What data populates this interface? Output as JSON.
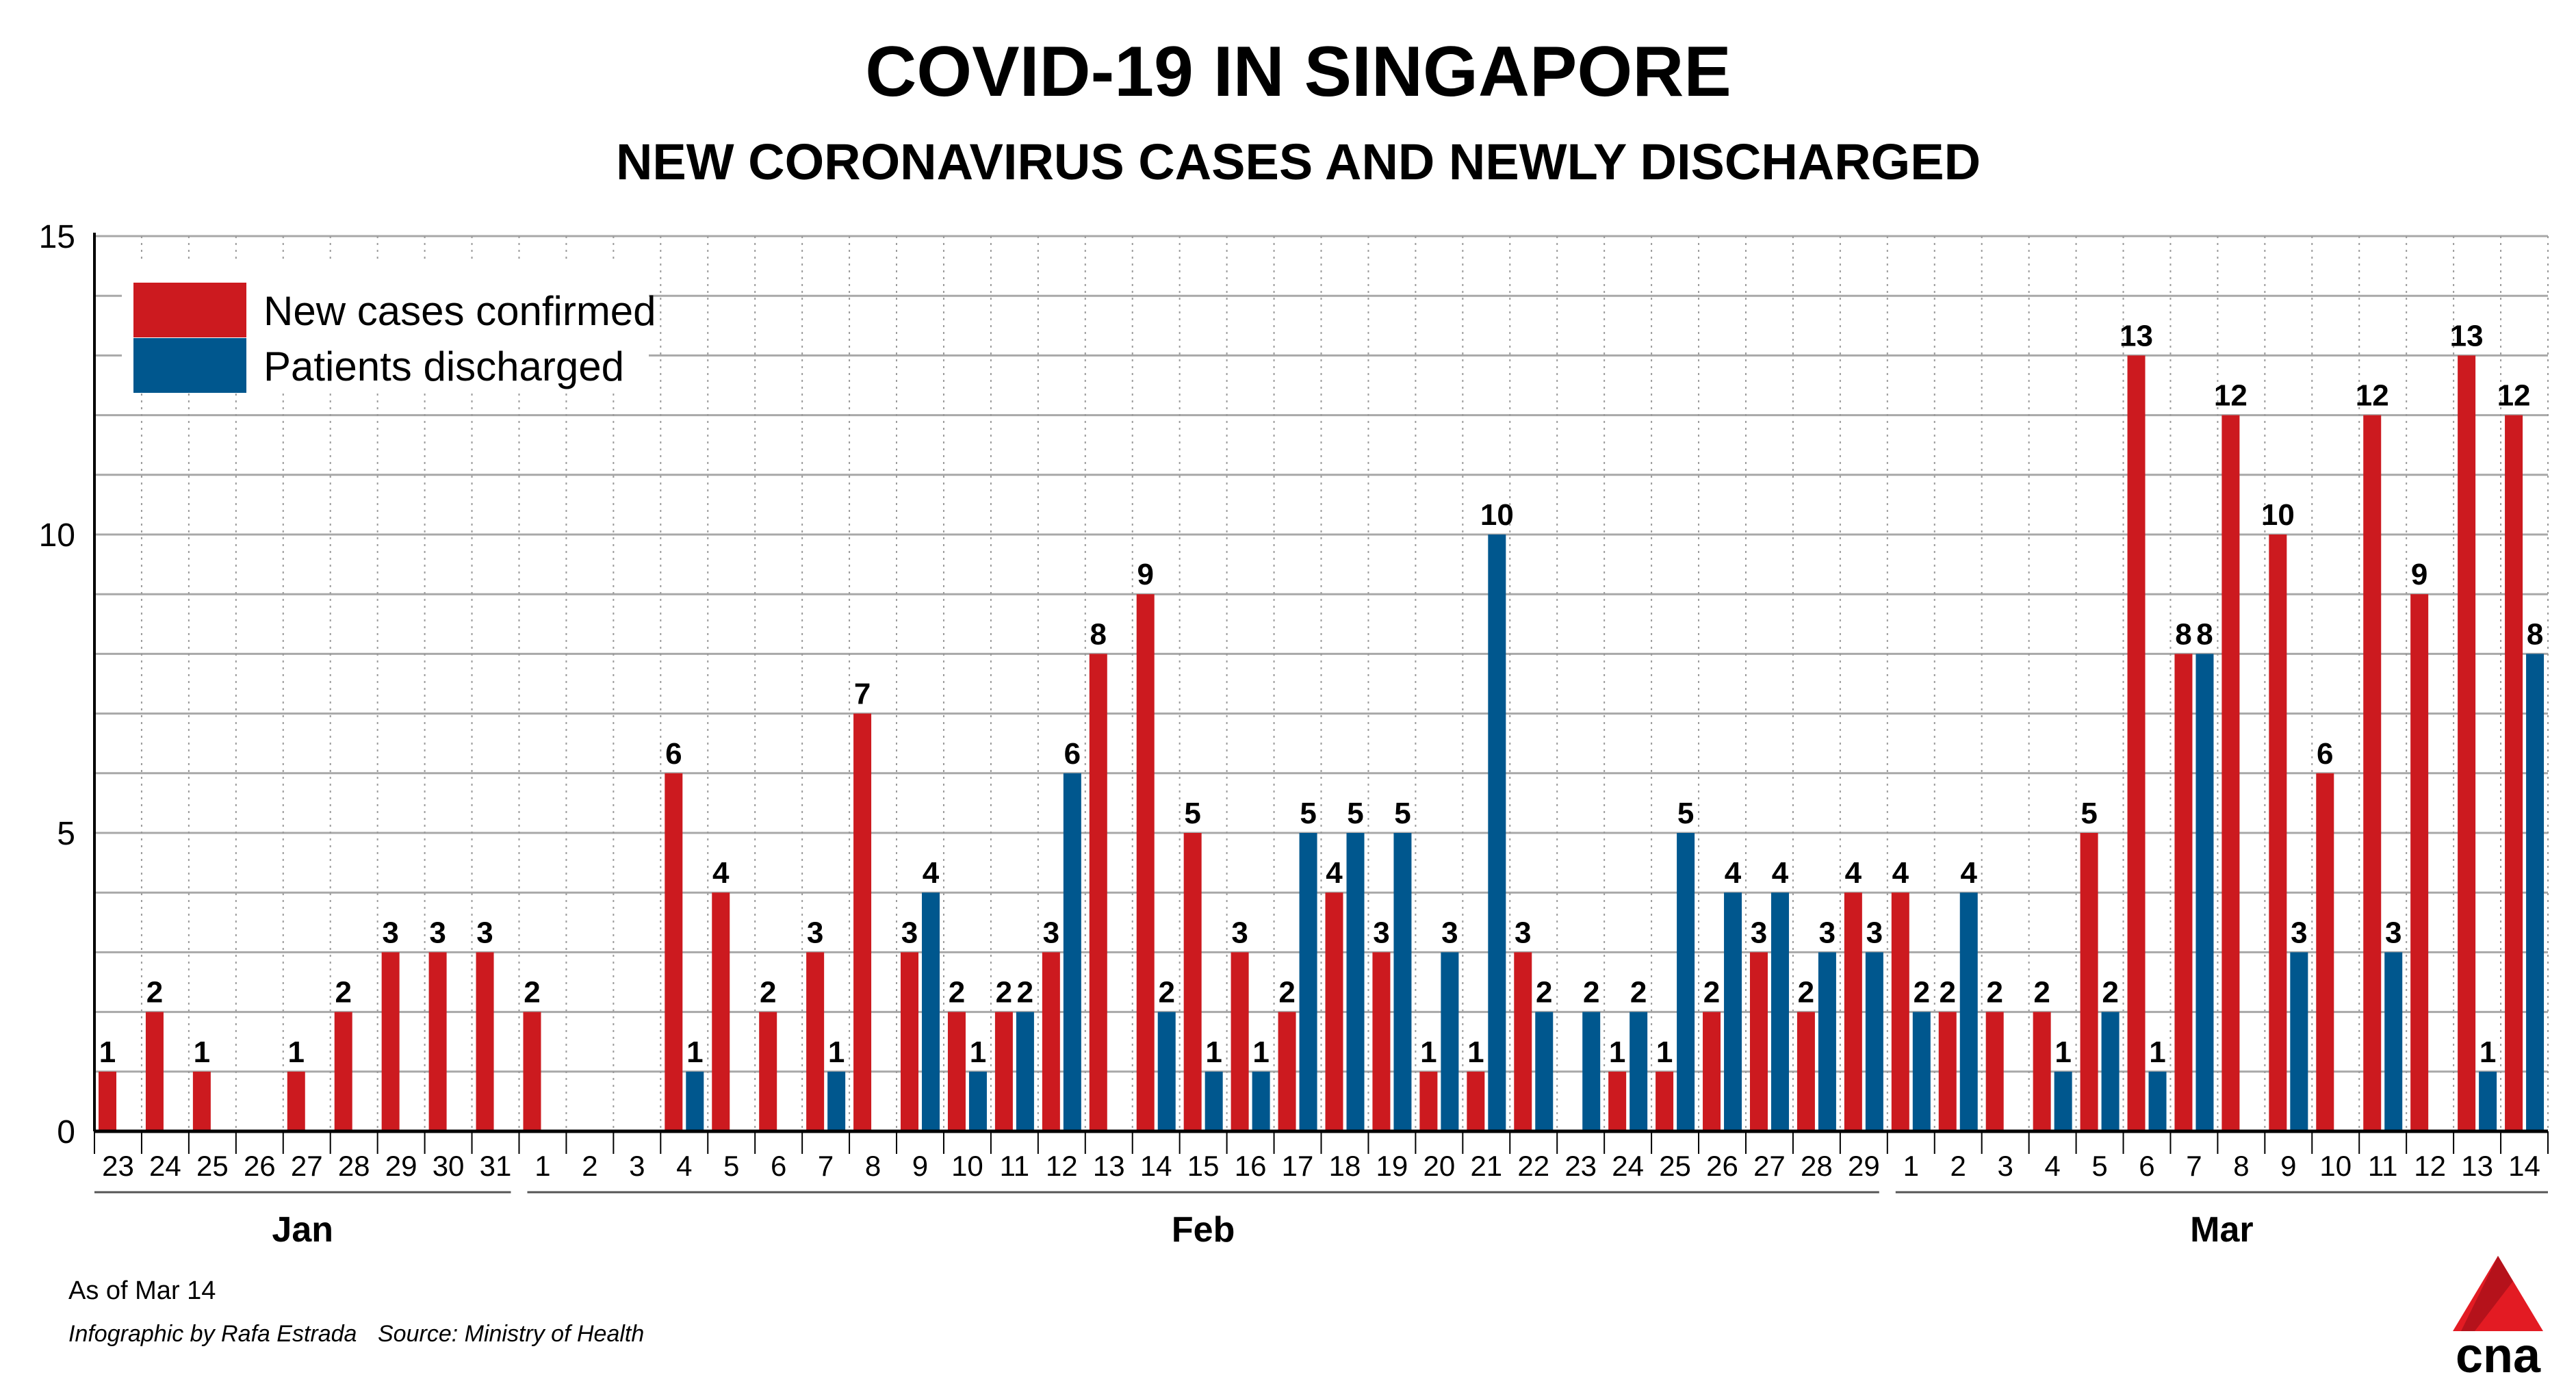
{
  "chart_data": {
    "type": "bar",
    "title": "COVID-19 IN SINGAPORE",
    "subtitle": "NEW CORONAVIRUS CASES AND NEWLY DISCHARGED",
    "xlabel": "",
    "ylabel": "",
    "ylim": [
      0,
      15
    ],
    "yticks": [
      "0",
      "5",
      "10",
      "15"
    ],
    "grid": true,
    "legend_position": "top-left",
    "months": [
      "Jan",
      "Feb",
      "Mar"
    ],
    "categories": [
      "23",
      "24",
      "25",
      "26",
      "27",
      "28",
      "29",
      "30",
      "31",
      "1",
      "2",
      "3",
      "4",
      "5",
      "6",
      "7",
      "8",
      "9",
      "10",
      "11",
      "12",
      "13",
      "14",
      "15",
      "16",
      "17",
      "18",
      "19",
      "20",
      "21",
      "22",
      "23",
      "24",
      "25",
      "26",
      "27",
      "28",
      "29",
      "1",
      "2",
      "3",
      "4",
      "5",
      "6",
      "7",
      "8",
      "9",
      "10",
      "11",
      "12",
      "13",
      "14"
    ],
    "series": [
      {
        "name": "New cases confirmed",
        "color": "#cc1a1f",
        "values": [
          1,
          2,
          1,
          0,
          1,
          2,
          3,
          3,
          3,
          2,
          0,
          0,
          6,
          4,
          2,
          3,
          7,
          3,
          2,
          2,
          3,
          8,
          9,
          5,
          3,
          2,
          4,
          3,
          1,
          1,
          3,
          0,
          1,
          1,
          2,
          3,
          2,
          4,
          4,
          2,
          2,
          2,
          5,
          13,
          8,
          12,
          10,
          6,
          12,
          9,
          13,
          12
        ]
      },
      {
        "name": "Patients discharged",
        "color": "#00578e",
        "values": [
          0,
          0,
          0,
          0,
          0,
          0,
          0,
          0,
          0,
          0,
          0,
          0,
          1,
          0,
          0,
          1,
          0,
          4,
          1,
          2,
          6,
          0,
          2,
          1,
          1,
          5,
          5,
          5,
          3,
          10,
          2,
          2,
          2,
          5,
          4,
          4,
          3,
          3,
          2,
          4,
          0,
          1,
          2,
          1,
          8,
          0,
          3,
          0,
          3,
          0,
          1,
          8
        ]
      }
    ]
  },
  "footer": {
    "as_of": "As of Mar 14",
    "credit": "Infographic by Rafa Estrada",
    "source": "Source: Ministry of Health"
  },
  "logo": {
    "text": "cna",
    "color": "#e31b23"
  }
}
